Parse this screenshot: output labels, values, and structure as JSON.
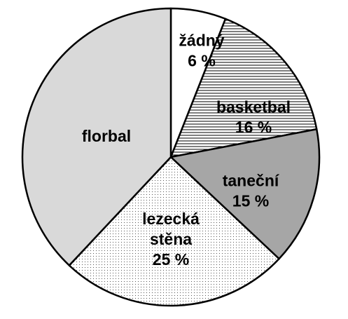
{
  "chart_data": {
    "type": "pie",
    "start_angle_deg": 0,
    "direction": "clockwise",
    "slices": [
      {
        "id": "zadny",
        "label_lines": [
          "žádný",
          "6 %"
        ],
        "value": 6,
        "fill": "#ffffff",
        "pattern": "none"
      },
      {
        "id": "basketbal",
        "label_lines": [
          "basketbal",
          "16 %"
        ],
        "value": 16,
        "fill": "#ffffff",
        "pattern": "horizontal-lines"
      },
      {
        "id": "tanecni",
        "label_lines": [
          "taneční",
          "15 %"
        ],
        "value": 15,
        "fill": "#a6a6a6",
        "pattern": "none"
      },
      {
        "id": "lezecka",
        "label_lines": [
          "lezecká",
          "stěna",
          "25 %"
        ],
        "value": 25,
        "fill": "#ffffff",
        "pattern": "dots"
      },
      {
        "id": "florbal",
        "label_lines": [
          "florbal"
        ],
        "value": 38,
        "fill": "#d9d9d9",
        "pattern": "none"
      }
    ]
  }
}
